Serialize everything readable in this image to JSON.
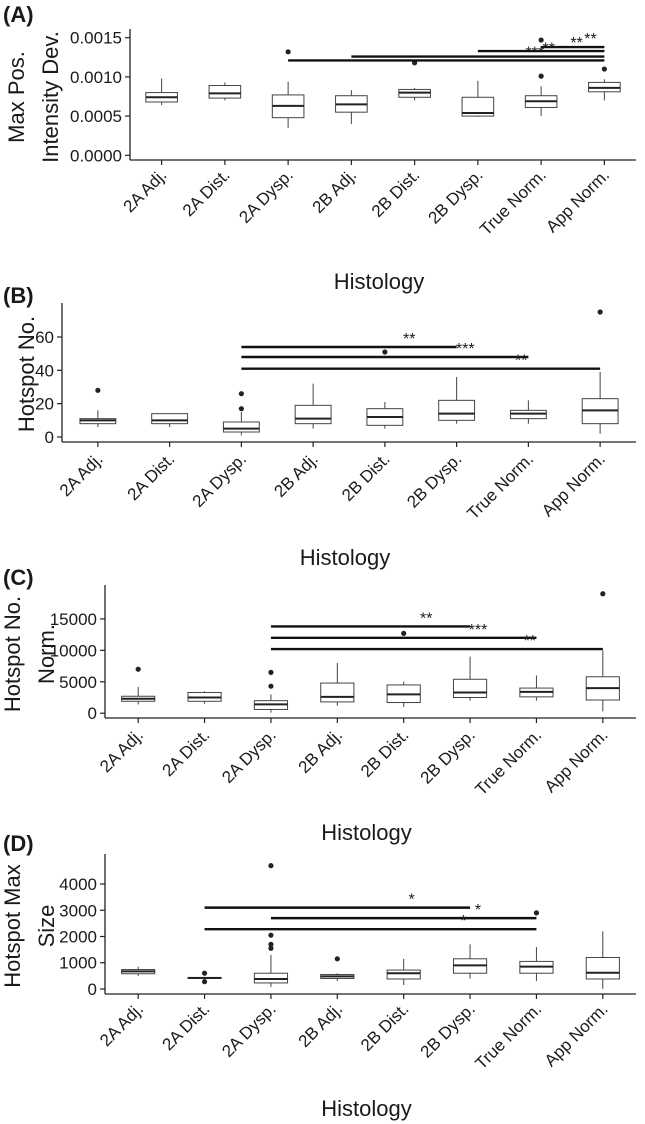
{
  "chart_data": [
    {
      "panel": "(A)",
      "type": "box",
      "xlabel": "Histology",
      "ylabel": "Max Pos. Intensity Dev.",
      "ylim": [
        0,
        0.0015
      ],
      "yticks": [
        0,
        0.0005,
        0.001,
        0.0015
      ],
      "ytick_labels": [
        "0.0000",
        "0.0005",
        "0.0010",
        "0.0015"
      ],
      "categories": [
        "2A Adj.",
        "2A Dist.",
        "2A Dysp.",
        "2B Adj.",
        "2B Dist.",
        "2B Dysp.",
        "True Norm.",
        "App Norm."
      ],
      "boxes": [
        {
          "min": 0.00064,
          "q1": 0.00068,
          "median": 0.00074,
          "q3": 0.0008,
          "max": 0.00098,
          "outliers": []
        },
        {
          "min": 0.0007,
          "q1": 0.00073,
          "median": 0.00079,
          "q3": 0.00089,
          "max": 0.00093,
          "outliers": []
        },
        {
          "min": 0.00035,
          "q1": 0.00048,
          "median": 0.00063,
          "q3": 0.00077,
          "max": 0.00094,
          "outliers": [
            0.00132
          ]
        },
        {
          "min": 0.0004,
          "q1": 0.00055,
          "median": 0.00065,
          "q3": 0.00076,
          "max": 0.00083,
          "outliers": []
        },
        {
          "min": 0.0007,
          "q1": 0.00074,
          "median": 0.0008,
          "q3": 0.00084,
          "max": 0.00086,
          "outliers": [
            0.00118
          ]
        },
        {
          "min": 0.00049,
          "q1": 0.0005,
          "median": 0.00054,
          "q3": 0.00074,
          "max": 0.00095,
          "outliers": []
        },
        {
          "min": 0.0005,
          "q1": 0.00061,
          "median": 0.00069,
          "q3": 0.00076,
          "max": 0.00088,
          "outliers": [
            0.00101,
            0.00147
          ]
        },
        {
          "min": 0.0007,
          "q1": 0.00081,
          "median": 0.00086,
          "q3": 0.00093,
          "max": 0.00097,
          "outliers": [
            0.0011
          ]
        }
      ],
      "significance": [
        {
          "from": "2A Dysp.",
          "to": "App Norm.",
          "label": "***",
          "y": 0.00121
        },
        {
          "from": "2B Adj.",
          "to": "App Norm.",
          "label": "**",
          "y": 0.00126
        },
        {
          "from": "2B Dysp.",
          "to": "App Norm.",
          "label": "**",
          "y": 0.00133
        },
        {
          "from": "True Norm.",
          "to": "App Norm.",
          "label": "**",
          "y": 0.00138
        }
      ]
    },
    {
      "panel": "(B)",
      "type": "box",
      "xlabel": "Histology",
      "ylabel": "Hotspot No.",
      "ylim": [
        0,
        75
      ],
      "yticks": [
        0,
        20,
        40,
        60
      ],
      "ytick_labels": [
        "0",
        "20",
        "40",
        "60"
      ],
      "categories": [
        "2A Adj.",
        "2A Dist.",
        "2A Dysp.",
        "2B Adj.",
        "2B Dist.",
        "2B Dysp.",
        "True Norm.",
        "App Norm."
      ],
      "boxes": [
        {
          "min": 6,
          "q1": 8,
          "median": 10,
          "q3": 11,
          "max": 16,
          "outliers": [
            28
          ]
        },
        {
          "min": 6,
          "q1": 8,
          "median": 10,
          "q3": 14,
          "max": 14,
          "outliers": []
        },
        {
          "min": 1,
          "q1": 3,
          "median": 5,
          "q3": 9,
          "max": 15,
          "outliers": [
            17,
            26
          ]
        },
        {
          "min": 5,
          "q1": 8,
          "median": 11,
          "q3": 19,
          "max": 32,
          "outliers": []
        },
        {
          "min": 5,
          "q1": 7,
          "median": 12,
          "q3": 17,
          "max": 21,
          "outliers": [
            51
          ]
        },
        {
          "min": 8,
          "q1": 10,
          "median": 14,
          "q3": 22,
          "max": 36,
          "outliers": []
        },
        {
          "min": 8,
          "q1": 11,
          "median": 14,
          "q3": 16,
          "max": 22,
          "outliers": []
        },
        {
          "min": 2,
          "q1": 8,
          "median": 16,
          "q3": 23,
          "max": 39,
          "outliers": [
            75
          ]
        }
      ],
      "significance": [
        {
          "from": "2A Dysp.",
          "to": "2B Dysp.",
          "label": "**",
          "y": 54
        },
        {
          "from": "2A Dysp.",
          "to": "True Norm.",
          "label": "***",
          "y": 48
        },
        {
          "from": "2A Dysp.",
          "to": "App Norm.",
          "label": "**",
          "y": 41
        }
      ]
    },
    {
      "panel": "(C)",
      "type": "box",
      "xlabel": "Histology",
      "ylabel": "Hotspot No. Norm.",
      "ylim": [
        0,
        19000
      ],
      "yticks": [
        0,
        5000,
        10000,
        15000
      ],
      "ytick_labels": [
        "0",
        "5000",
        "10000",
        "15000"
      ],
      "categories": [
        "2A Adj.",
        "2A Dist.",
        "2A Dysp.",
        "2B Adj.",
        "2B Dist.",
        "2B Dysp.",
        "True Norm.",
        "App Norm."
      ],
      "boxes": [
        {
          "min": 1400,
          "q1": 1900,
          "median": 2300,
          "q3": 2700,
          "max": 4200,
          "outliers": [
            7000
          ]
        },
        {
          "min": 1500,
          "q1": 1900,
          "median": 2500,
          "q3": 3300,
          "max": 3500,
          "outliers": []
        },
        {
          "min": 100,
          "q1": 600,
          "median": 1400,
          "q3": 2000,
          "max": 3000,
          "outliers": [
            4300,
            6500
          ]
        },
        {
          "min": 1200,
          "q1": 1800,
          "median": 2600,
          "q3": 4800,
          "max": 8000,
          "outliers": []
        },
        {
          "min": 1000,
          "q1": 1700,
          "median": 3000,
          "q3": 4500,
          "max": 5000,
          "outliers": [
            12700
          ]
        },
        {
          "min": 2000,
          "q1": 2500,
          "median": 3300,
          "q3": 5400,
          "max": 9000,
          "outliers": []
        },
        {
          "min": 2000,
          "q1": 2600,
          "median": 3400,
          "q3": 4000,
          "max": 6000,
          "outliers": []
        },
        {
          "min": 300,
          "q1": 2100,
          "median": 4000,
          "q3": 5800,
          "max": 10000,
          "outliers": [
            19000
          ]
        }
      ],
      "significance": [
        {
          "from": "2A Dysp.",
          "to": "2B Dysp.",
          "label": "**",
          "y": 13800
        },
        {
          "from": "2A Dysp.",
          "to": "True Norm.",
          "label": "***",
          "y": 12000
        },
        {
          "from": "2A Dysp.",
          "to": "App Norm.",
          "label": "**",
          "y": 10200
        }
      ]
    },
    {
      "panel": "(D)",
      "type": "box",
      "xlabel": "Histology",
      "ylabel": "Hotspot Max Size",
      "ylim": [
        0,
        4800
      ],
      "yticks": [
        0,
        1000,
        2000,
        3000,
        4000
      ],
      "ytick_labels": [
        "0",
        "1000",
        "2000",
        "3000",
        "4000"
      ],
      "categories": [
        "2A Adj.",
        "2A Dist.",
        "2A Dysp.",
        "2B Adj.",
        "2B Dist.",
        "2B Dysp.",
        "True Norm.",
        "App Norm."
      ],
      "boxes": [
        {
          "min": 500,
          "q1": 580,
          "median": 670,
          "q3": 740,
          "max": 850,
          "outliers": []
        },
        {
          "min": 380,
          "q1": 400,
          "median": 420,
          "q3": 440,
          "max": 460,
          "outliers": [
            280,
            600
          ]
        },
        {
          "min": 80,
          "q1": 230,
          "median": 380,
          "q3": 600,
          "max": 1300,
          "outliers": [
            1550,
            1700,
            2050,
            4700
          ]
        },
        {
          "min": 300,
          "q1": 400,
          "median": 480,
          "q3": 550,
          "max": 600,
          "outliers": [
            1150
          ]
        },
        {
          "min": 150,
          "q1": 380,
          "median": 600,
          "q3": 720,
          "max": 1150,
          "outliers": []
        },
        {
          "min": 400,
          "q1": 600,
          "median": 900,
          "q3": 1150,
          "max": 1700,
          "outliers": []
        },
        {
          "min": 300,
          "q1": 600,
          "median": 850,
          "q3": 1050,
          "max": 1600,
          "outliers": [
            2900
          ]
        },
        {
          "min": 0,
          "q1": 380,
          "median": 620,
          "q3": 1200,
          "max": 2200,
          "outliers": []
        }
      ],
      "significance": [
        {
          "from": "2A Dist.",
          "to": "2B Dysp.",
          "label": "*",
          "y": 3100
        },
        {
          "from": "2A Dysp.",
          "to": "True Norm.",
          "label": "*",
          "y": 2700
        },
        {
          "from": "2A Dist.",
          "to": "True Norm.",
          "label": "*",
          "y": 2280
        }
      ]
    }
  ]
}
